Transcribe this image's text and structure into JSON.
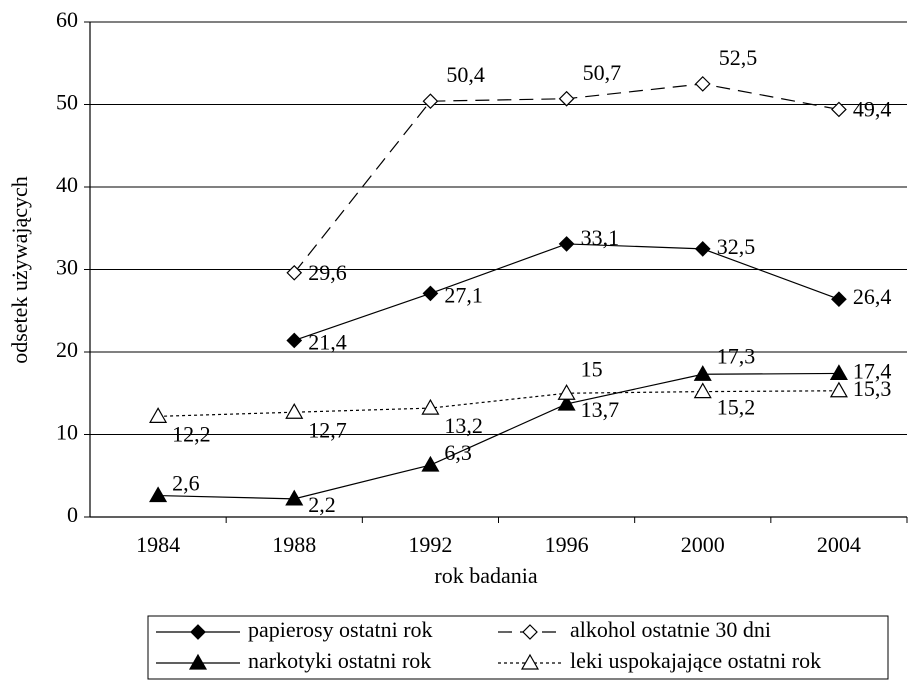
{
  "chart_data": {
    "type": "line",
    "x_label": "rok badania",
    "y_label": "odsetek używających",
    "categories": [
      "1984",
      "1988",
      "1992",
      "1996",
      "2000",
      "2004"
    ],
    "ylim": [
      0,
      60
    ],
    "yticks": [
      0,
      10,
      20,
      30,
      40,
      50,
      60
    ],
    "grid": true,
    "series": [
      {
        "name": "papierosy ostatni rok",
        "color": "#000000",
        "marker": "diamond",
        "filled": true,
        "line_style": "solid",
        "values": [
          null,
          21.4,
          27.1,
          33.1,
          32.5,
          26.4
        ],
        "value_labels": [
          null,
          "21,4",
          "27,1",
          "33,1",
          "32,5",
          "26,4"
        ]
      },
      {
        "name": "alkohol ostatnie 30 dni",
        "color": "#000000",
        "marker": "diamond",
        "filled": false,
        "line_style": "dashed",
        "values": [
          null,
          29.6,
          50.4,
          50.7,
          52.5,
          49.4
        ],
        "value_labels": [
          null,
          "29,6",
          "50,4",
          "50,7",
          "52,5",
          "49,4"
        ]
      },
      {
        "name": "narkotyki ostatni rok",
        "color": "#000000",
        "marker": "triangle",
        "filled": true,
        "line_style": "solid",
        "values": [
          2.6,
          2.2,
          6.3,
          13.7,
          17.3,
          17.4
        ],
        "value_labels": [
          "2,6",
          "2,2",
          "6,3",
          "13,7",
          "17,3",
          "17,4"
        ]
      },
      {
        "name": "leki uspokajające ostatni rok",
        "color": "#000000",
        "marker": "triangle",
        "filled": false,
        "line_style": "dotted",
        "values": [
          12.2,
          12.7,
          13.2,
          15,
          15.2,
          15.3
        ],
        "value_labels": [
          "12,2",
          "12,7",
          "13,2",
          "15",
          "15,2",
          "15,3"
        ]
      }
    ]
  }
}
